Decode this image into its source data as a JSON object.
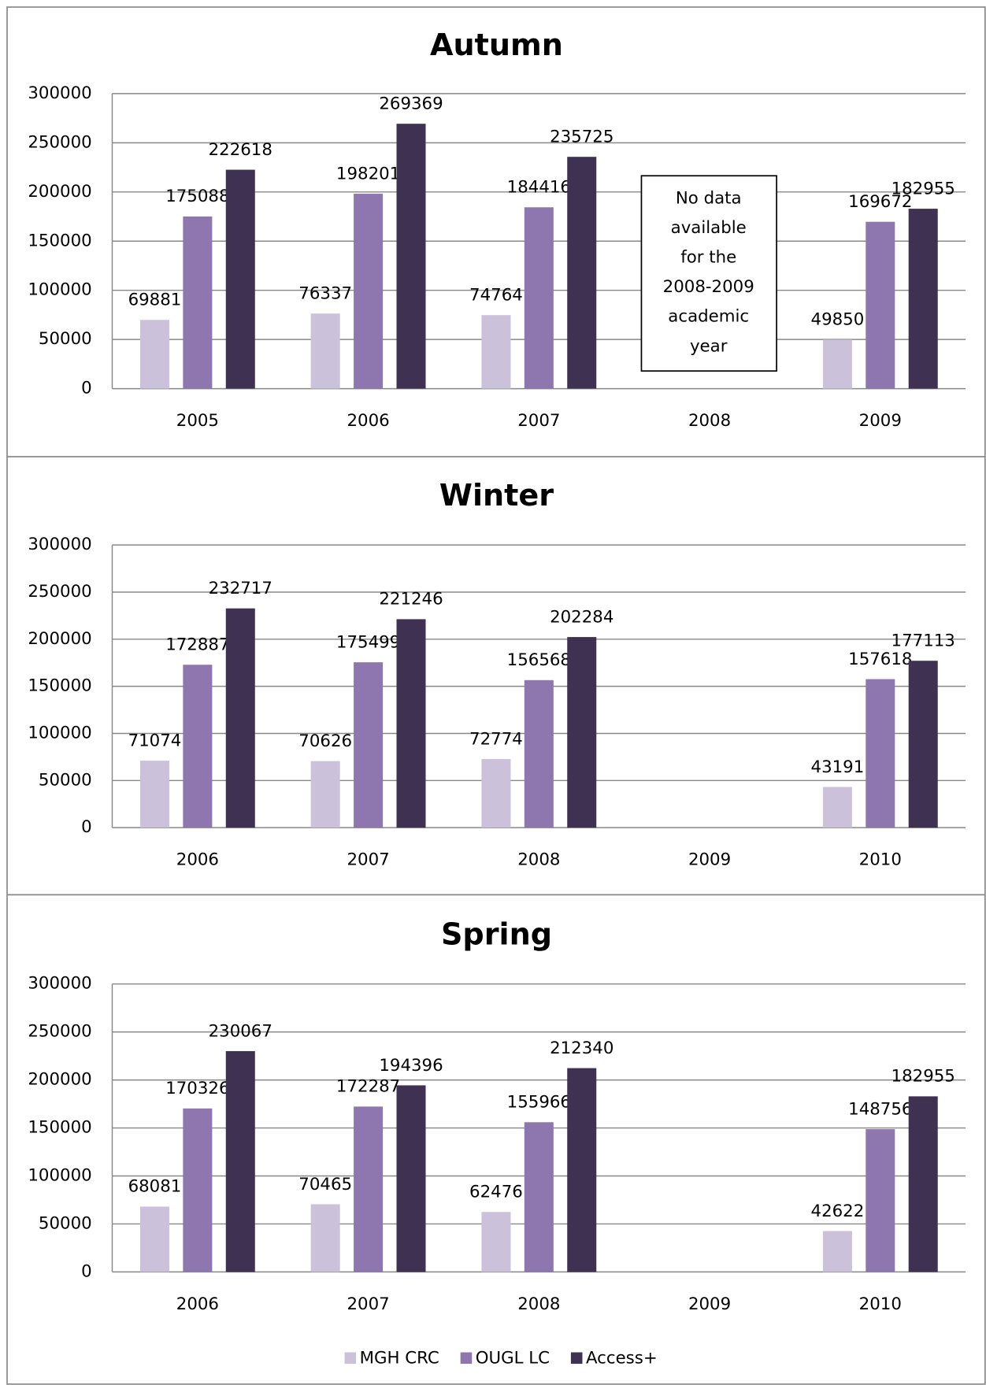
{
  "chart_data": [
    {
      "type": "bar",
      "title": "Autumn",
      "categories": [
        "2005",
        "2006",
        "2007",
        "2008",
        "2009"
      ],
      "series": [
        {
          "color": "#ccc1da",
          "values": [
            69881,
            76337,
            74764,
            null,
            49850
          ]
        },
        {
          "color": "#8e76ae",
          "values": [
            175088,
            198201,
            184416,
            null,
            169672
          ]
        },
        {
          "color": "#3f3151",
          "values": [
            222618,
            269369,
            235725,
            null,
            182955
          ]
        }
      ],
      "ylim": [
        0,
        300000
      ],
      "yticks": [
        0,
        50000,
        100000,
        150000,
        200000,
        250000,
        300000
      ],
      "grid": true,
      "annotation": [
        "No data",
        "available",
        "for the",
        "2008-2009",
        "academic",
        "year"
      ]
    },
    {
      "type": "bar",
      "title": "Winter",
      "categories": [
        "2006",
        "2007",
        "2008",
        "2009",
        "2010"
      ],
      "series": [
        {
          "color": "#ccc1da",
          "values": [
            71074,
            70626,
            72774,
            null,
            43191
          ]
        },
        {
          "color": "#8e76ae",
          "values": [
            172887,
            175499,
            156568,
            null,
            157618
          ]
        },
        {
          "color": "#3f3151",
          "values": [
            232717,
            221246,
            202284,
            null,
            177113
          ]
        }
      ],
      "ylim": [
        0,
        300000
      ],
      "yticks": [
        0,
        50000,
        100000,
        150000,
        200000,
        250000,
        300000
      ],
      "grid": true
    },
    {
      "type": "bar",
      "title": "Spring",
      "categories": [
        "2006",
        "2007",
        "2008",
        "2009",
        "2010"
      ],
      "series": [
        {
          "name": "MGH CRC",
          "color": "#ccc1da",
          "values": [
            68081,
            70465,
            62476,
            null,
            42622
          ]
        },
        {
          "name": "OUGL LC",
          "color": "#8e76ae",
          "values": [
            170326,
            172287,
            155966,
            null,
            148756
          ]
        },
        {
          "name": "Access+",
          "color": "#3f3151",
          "values": [
            230067,
            194396,
            212340,
            null,
            182955
          ]
        }
      ],
      "ylim": [
        0,
        300000
      ],
      "yticks": [
        0,
        50000,
        100000,
        150000,
        200000,
        250000,
        300000
      ],
      "grid": true,
      "legend": "bottom"
    }
  ]
}
